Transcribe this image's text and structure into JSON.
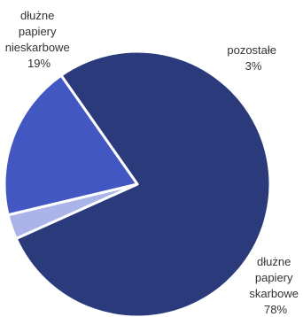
{
  "chart_data": {
    "type": "pie",
    "slices": [
      {
        "name_lines": [
          "dłużne",
          "papiery",
          "skarbowe"
        ],
        "value": 78,
        "label": "78%",
        "color": "#2b3a7a"
      },
      {
        "name_lines": [
          "pozostałe"
        ],
        "value": 3,
        "label": "3%",
        "color": "#aab4e8"
      },
      {
        "name_lines": [
          "dłużne",
          "papiery",
          "nieskarbowe"
        ],
        "value": 19,
        "label": "19%",
        "color": "#4257c2"
      }
    ],
    "start_angle_deg": -35,
    "legend": "none"
  }
}
